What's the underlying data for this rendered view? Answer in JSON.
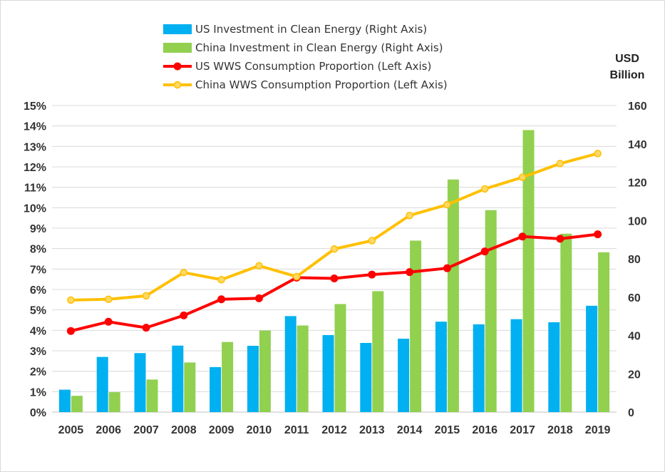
{
  "chart_data": {
    "type": "bar",
    "categories": [
      "2005",
      "2006",
      "2007",
      "2008",
      "2009",
      "2010",
      "2011",
      "2012",
      "2013",
      "2014",
      "2015",
      "2016",
      "2017",
      "2018",
      "2019"
    ],
    "series": [
      {
        "name": "US Investment in Clean Energy (Right Axis)",
        "type": "bar",
        "axis": "right",
        "color": "#00b0f0",
        "values": [
          11.7,
          28.8,
          30.8,
          34.7,
          23.5,
          34.6,
          50.1,
          40.2,
          36.1,
          38.3,
          47.2,
          45.8,
          48.5,
          46.9,
          55.5
        ]
      },
      {
        "name": "China Investment in Clean Energy (Right Axis)",
        "type": "bar",
        "axis": "right",
        "color": "#92d050",
        "values": [
          8.5,
          10.4,
          17.0,
          25.9,
          36.6,
          42.6,
          45.2,
          56.4,
          63.1,
          89.5,
          121.4,
          105.4,
          147.2,
          93.1,
          83.4
        ]
      },
      {
        "name": "US WWS Consumption Proportion (Left Axis)",
        "type": "line",
        "axis": "left",
        "color": "#ff0000",
        "values": [
          3.97,
          4.42,
          4.13,
          4.73,
          5.52,
          5.57,
          6.58,
          6.54,
          6.73,
          6.85,
          7.04,
          7.86,
          8.59,
          8.48,
          8.7
        ]
      },
      {
        "name": "China WWS Consumption Proportion (Left Axis)",
        "type": "line",
        "axis": "left",
        "color": "#ffc000",
        "values": [
          5.48,
          5.52,
          5.69,
          6.83,
          6.48,
          7.16,
          6.63,
          7.98,
          8.39,
          9.62,
          10.15,
          10.92,
          11.49,
          12.16,
          12.65
        ]
      }
    ],
    "left_axis": {
      "min": 0,
      "max": 15,
      "tick_labels": [
        "0%",
        "1%",
        "2%",
        "3%",
        "4%",
        "5%",
        "6%",
        "7%",
        "8%",
        "9%",
        "10%",
        "11%",
        "12%",
        "13%",
        "14%",
        "15%"
      ]
    },
    "right_axis": {
      "min": 0,
      "max": 160,
      "tick_labels": [
        "0",
        "20",
        "40",
        "60",
        "80",
        "100",
        "120",
        "140",
        "160"
      ],
      "title_lines": [
        "USD",
        "Billion"
      ]
    },
    "legend_position": "top-center",
    "grid": true,
    "title": "",
    "xlabel": ""
  }
}
